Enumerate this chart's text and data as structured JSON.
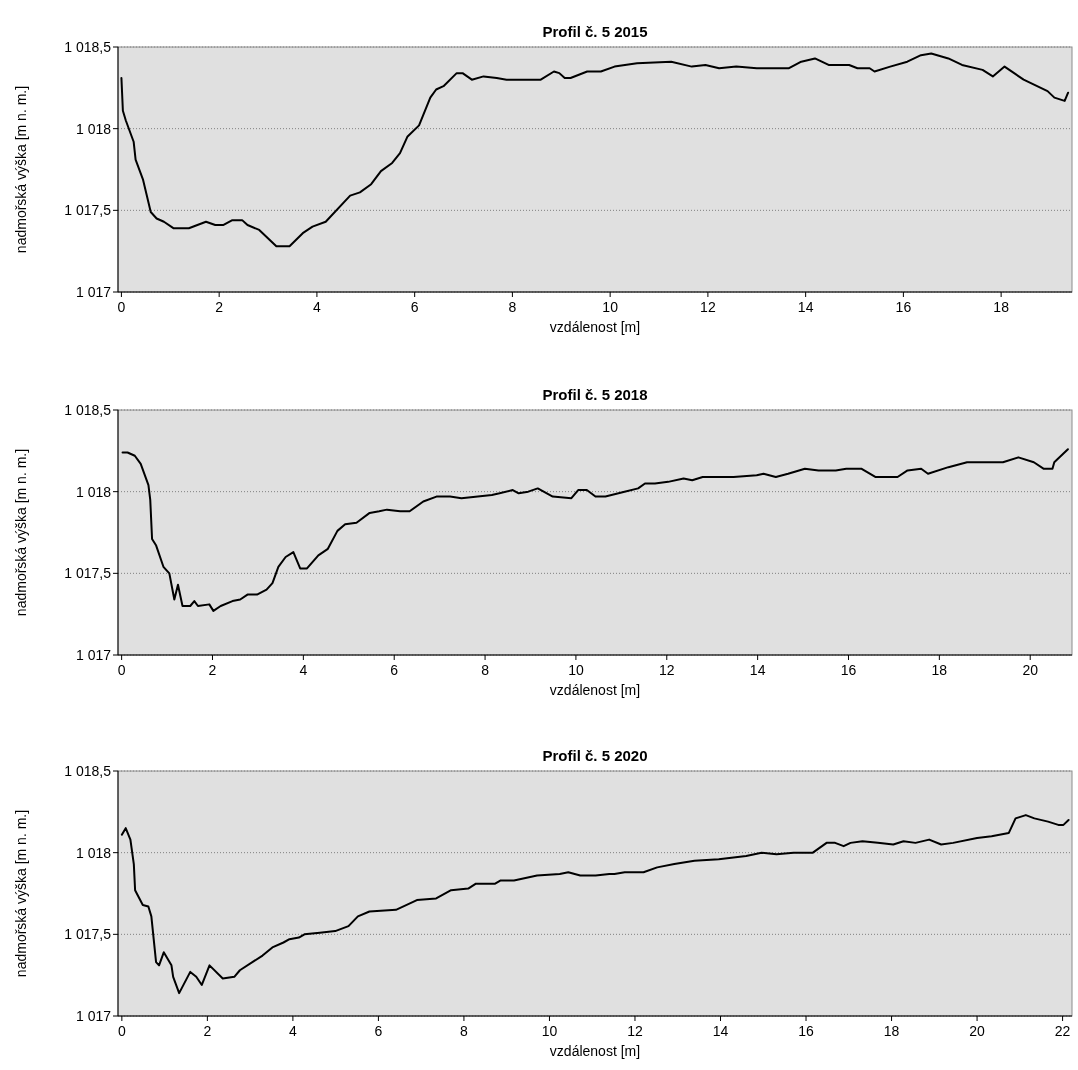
{
  "chart_data": [
    {
      "type": "line",
      "title": "Profil č. 5 2015",
      "xlabel": "vzdálenost [m]",
      "ylabel": "nadmořská výška [m n. m.]",
      "xlim": [
        -0.07,
        19.45
      ],
      "ylim": [
        1017,
        1018.5
      ],
      "xticks": [
        0,
        2,
        4,
        6,
        8,
        10,
        12,
        14,
        16,
        18
      ],
      "yticks": [
        {
          "value": 1017,
          "label": "1 017"
        },
        {
          "value": 1017.5,
          "label": "1 017,5"
        },
        {
          "value": 1018,
          "label": "1 018"
        },
        {
          "value": 1018.5,
          "label": "1 018,5"
        }
      ],
      "grid": "y",
      "marker": "none",
      "line_style": "solid",
      "series": [
        {
          "color": "#000000",
          "x": [
            0,
            0.03,
            0.09,
            0.25,
            0.29,
            0.44,
            0.6,
            0.72,
            0.87,
            1.07,
            1.38,
            1.73,
            1.92,
            2.08,
            2.27,
            2.47,
            2.58,
            2.82,
            3.17,
            3.44,
            3.71,
            3.91,
            4.18,
            4.68,
            4.88,
            5.11,
            5.31,
            5.54,
            5.7,
            5.85,
            6.09,
            6.32,
            6.44,
            6.59,
            6.86,
            6.98,
            7.17,
            7.41,
            7.68,
            7.88,
            8.26,
            8.58,
            8.85,
            8.96,
            9.07,
            9.19,
            9.53,
            9.81,
            10.09,
            10.55,
            11.25,
            11.67,
            11.95,
            12.23,
            12.58,
            13.0,
            13.66,
            13.91,
            14.19,
            14.47,
            14.89,
            15.06,
            15.31,
            15.41,
            15.73,
            16.08,
            16.36,
            16.57,
            16.92,
            17.2,
            17.62,
            17.83,
            18.07,
            18.46,
            18.95,
            19.09,
            19.3,
            19.37
          ],
          "values": [
            1018.31,
            1018.11,
            1018.05,
            1017.92,
            1017.81,
            1017.69,
            1017.49,
            1017.45,
            1017.43,
            1017.39,
            1017.39,
            1017.43,
            1017.41,
            1017.41,
            1017.44,
            1017.44,
            1017.41,
            1017.38,
            1017.28,
            1017.28,
            1017.36,
            1017.4,
            1017.43,
            1017.59,
            1017.61,
            1017.66,
            1017.74,
            1017.79,
            1017.85,
            1017.95,
            1018.02,
            1018.19,
            1018.24,
            1018.26,
            1018.34,
            1018.34,
            1018.3,
            1018.32,
            1018.31,
            1018.3,
            1018.3,
            1018.3,
            1018.35,
            1018.34,
            1018.31,
            1018.31,
            1018.35,
            1018.35,
            1018.38,
            1018.4,
            1018.41,
            1018.38,
            1018.39,
            1018.37,
            1018.38,
            1018.37,
            1018.37,
            1018.41,
            1018.43,
            1018.39,
            1018.39,
            1018.37,
            1018.37,
            1018.35,
            1018.38,
            1018.41,
            1018.45,
            1018.46,
            1018.43,
            1018.39,
            1018.36,
            1018.32,
            1018.38,
            1018.3,
            1018.23,
            1018.19,
            1018.17,
            1018.22
          ]
        }
      ]
    },
    {
      "type": "line",
      "title": "Profil č. 5 2018",
      "xlabel": "vzdálenost [m]",
      "ylabel": "nadmořská výška [m n. m.]",
      "xlim": [
        -0.08,
        20.92
      ],
      "ylim": [
        1017,
        1018.5
      ],
      "xticks": [
        0,
        2,
        4,
        6,
        8,
        10,
        12,
        14,
        16,
        18,
        20
      ],
      "yticks": [
        {
          "value": 1017,
          "label": "1 017"
        },
        {
          "value": 1017.5,
          "label": "1 017,5"
        },
        {
          "value": 1018,
          "label": "1 018"
        },
        {
          "value": 1018.5,
          "label": "1 018,5"
        }
      ],
      "grid": "y",
      "marker": "none",
      "line_style": "solid",
      "series": [
        {
          "color": "#000000",
          "x": [
            0.02,
            0.13,
            0.29,
            0.42,
            0.59,
            0.63,
            0.67,
            0.76,
            0.92,
            1.05,
            1.16,
            1.24,
            1.34,
            1.51,
            1.6,
            1.68,
            1.93,
            2.02,
            2.18,
            2.44,
            2.61,
            2.77,
            2.98,
            3.19,
            3.32,
            3.45,
            3.61,
            3.78,
            3.93,
            4.08,
            4.33,
            4.54,
            4.75,
            4.92,
            5.17,
            5.46,
            5.67,
            5.84,
            6.13,
            6.34,
            6.64,
            6.93,
            7.23,
            7.48,
            8.15,
            8.32,
            8.61,
            8.74,
            8.95,
            9.16,
            9.49,
            9.9,
            10.05,
            10.24,
            10.43,
            10.65,
            11.07,
            11.37,
            11.52,
            11.74,
            12.03,
            12.37,
            12.56,
            12.79,
            13.02,
            13.47,
            13.98,
            14.13,
            14.4,
            14.67,
            15.04,
            15.34,
            15.72,
            15.95,
            16.29,
            16.59,
            17.08,
            17.3,
            17.6,
            17.75,
            18.2,
            18.61,
            19.03,
            19.4,
            19.74,
            20.08,
            20.3,
            20.49,
            20.53,
            20.83
          ],
          "values": [
            1018.24,
            1018.24,
            1018.22,
            1018.17,
            1018.04,
            1017.95,
            1017.71,
            1017.67,
            1017.54,
            1017.5,
            1017.34,
            1017.43,
            1017.3,
            1017.3,
            1017.33,
            1017.3,
            1017.31,
            1017.27,
            1017.3,
            1017.33,
            1017.34,
            1017.37,
            1017.37,
            1017.4,
            1017.44,
            1017.54,
            1017.6,
            1017.63,
            1017.53,
            1017.53,
            1017.61,
            1017.65,
            1017.76,
            1017.8,
            1017.81,
            1017.87,
            1017.88,
            1017.89,
            1017.88,
            1017.88,
            1017.94,
            1017.97,
            1017.97,
            1017.96,
            1017.98,
            1017.99,
            1018.01,
            1017.99,
            1018.0,
            1018.02,
            1017.97,
            1017.96,
            1018.01,
            1018.01,
            1017.97,
            1017.97,
            1018.0,
            1018.02,
            1018.05,
            1018.05,
            1018.06,
            1018.08,
            1018.07,
            1018.09,
            1018.09,
            1018.09,
            1018.1,
            1018.11,
            1018.09,
            1018.11,
            1018.14,
            1018.13,
            1018.13,
            1018.14,
            1018.14,
            1018.09,
            1018.09,
            1018.13,
            1018.14,
            1018.11,
            1018.15,
            1018.18,
            1018.18,
            1018.18,
            1018.21,
            1018.18,
            1018.14,
            1018.14,
            1018.18,
            1018.26
          ]
        }
      ]
    },
    {
      "type": "line",
      "title": "Profil č. 5 2020",
      "xlabel": "vzdálenost [m]",
      "ylabel": "nadmořská výška [m n. m.]",
      "xlim": [
        -0.09,
        22.22
      ],
      "ylim": [
        1017,
        1018.5
      ],
      "xticks": [
        0,
        2,
        4,
        6,
        8,
        10,
        12,
        14,
        16,
        18,
        20,
        22
      ],
      "yticks": [
        {
          "value": 1017,
          "label": "1 017"
        },
        {
          "value": 1017.5,
          "label": "1 017,5"
        },
        {
          "value": 1018,
          "label": "1 018"
        },
        {
          "value": 1018.5,
          "label": "1 018,5"
        }
      ],
      "grid": "y",
      "marker": "none",
      "line_style": "solid",
      "series": [
        {
          "color": "#000000",
          "x": [
            0,
            0.09,
            0.2,
            0.28,
            0.31,
            0.49,
            0.62,
            0.69,
            0.8,
            0.87,
            0.98,
            1.16,
            1.2,
            1.34,
            1.6,
            1.74,
            1.87,
            2.05,
            2.36,
            2.63,
            2.76,
            3.29,
            3.52,
            3.78,
            3.92,
            4.14,
            4.27,
            4.63,
            4.99,
            5.3,
            5.52,
            5.79,
            6.41,
            6.9,
            7.35,
            7.7,
            8.1,
            8.28,
            8.73,
            8.86,
            9.17,
            9.71,
            10.24,
            10.44,
            10.72,
            11.08,
            11.4,
            11.52,
            11.76,
            12.2,
            12.52,
            12.92,
            13.39,
            13.96,
            14.6,
            14.96,
            15.31,
            15.71,
            16.16,
            16.48,
            16.68,
            16.88,
            17.04,
            17.32,
            17.68,
            18.04,
            18.28,
            18.56,
            18.88,
            19.16,
            19.44,
            20.0,
            20.34,
            20.74,
            20.9,
            21.14,
            21.34,
            21.66,
            21.9,
            22.02,
            22.14
          ],
          "values": [
            1018.11,
            1018.15,
            1018.08,
            1017.93,
            1017.77,
            1017.68,
            1017.67,
            1017.61,
            1017.33,
            1017.31,
            1017.39,
            1017.31,
            1017.24,
            1017.14,
            1017.27,
            1017.24,
            1017.19,
            1017.31,
            1017.23,
            1017.24,
            1017.28,
            1017.37,
            1017.42,
            1017.45,
            1017.47,
            1017.48,
            1017.5,
            1017.51,
            1017.52,
            1017.55,
            1017.61,
            1017.64,
            1017.65,
            1017.71,
            1017.72,
            1017.77,
            1017.78,
            1017.81,
            1017.81,
            1017.83,
            1017.83,
            1017.86,
            1017.87,
            1017.88,
            1017.86,
            1017.86,
            1017.87,
            1017.87,
            1017.88,
            1017.88,
            1017.91,
            1017.93,
            1017.95,
            1017.96,
            1017.98,
            1018.0,
            1017.99,
            1018.0,
            1018.0,
            1018.06,
            1018.06,
            1018.04,
            1018.06,
            1018.07,
            1018.06,
            1018.05,
            1018.07,
            1018.06,
            1018.08,
            1018.05,
            1018.06,
            1018.09,
            1018.1,
            1018.12,
            1018.21,
            1018.23,
            1018.21,
            1018.19,
            1018.17,
            1018.17,
            1018.2
          ]
        }
      ]
    }
  ]
}
